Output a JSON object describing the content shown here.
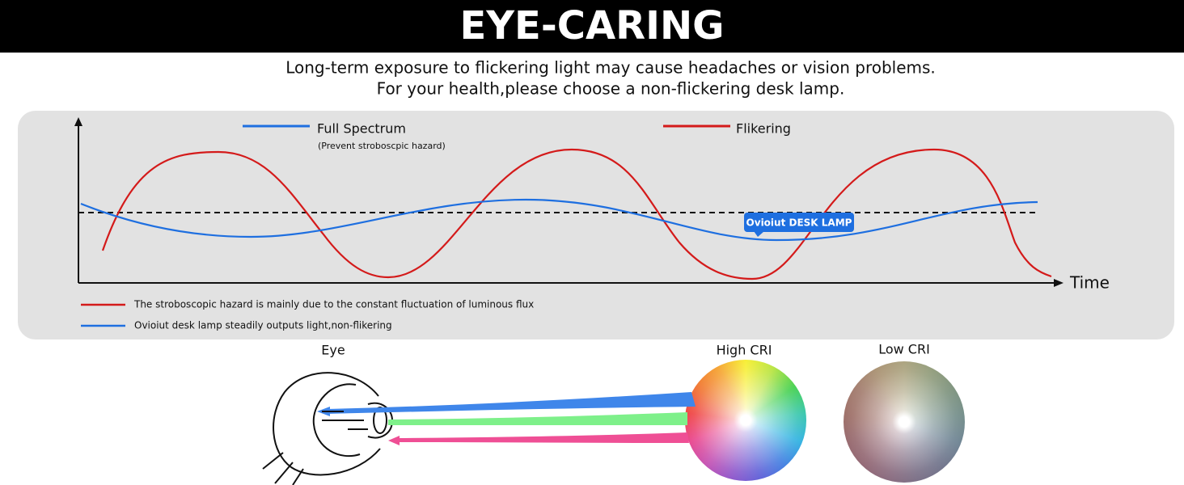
{
  "header": {
    "title": "EYE-CARING"
  },
  "intro": {
    "lines": [
      "Long-term exposure to flickering light may cause headaches or vision problems.",
      "For your health,please choose a non-flickering desk lamp."
    ]
  },
  "chart": {
    "legend": [
      {
        "label": "Full Spectrum",
        "note": "(Prevent stroboscpic hazard)"
      },
      {
        "label": "Flikering"
      }
    ],
    "axis_label": "Time",
    "callout": "Ovioiut DESK LAMP",
    "notes": [
      "The stroboscopic hazard is mainly due to the constant fluctuation of luminous flux",
      "Ovioiut desk lamp steadily outputs light,non-flikering"
    ]
  },
  "bottom": {
    "eye_label": "Eye",
    "high_cri_label": "High CRI",
    "low_cri_label": "Low CRI"
  }
}
